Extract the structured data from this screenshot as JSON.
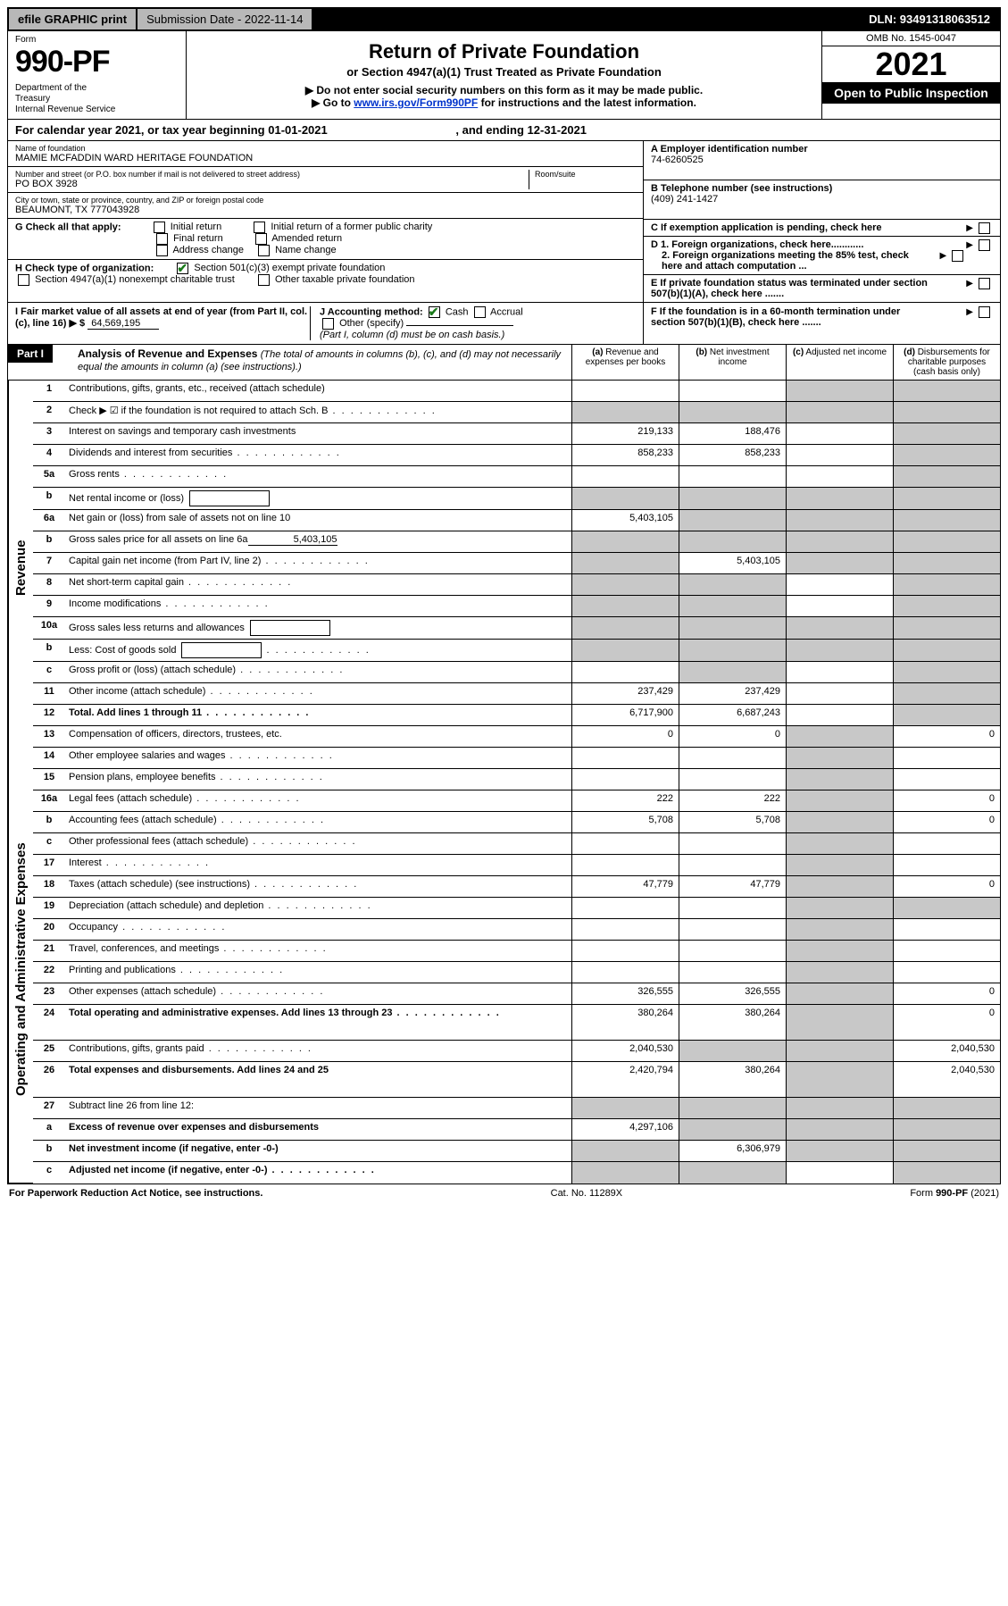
{
  "topbar": {
    "efile": "efile GRAPHIC print",
    "submission_label": "Submission Date - 2022-11-14",
    "dln": "DLN: 93491318063512"
  },
  "header": {
    "form_label": "Form",
    "form_num": "990-PF",
    "dept": "Department of the Treasury\nInternal Revenue Service",
    "title": "Return of Private Foundation",
    "subtitle": "or Section 4947(a)(1) Trust Treated as Private Foundation",
    "note1": "▶ Do not enter social security numbers on this form as it may be made public.",
    "note2_pre": "▶ Go to ",
    "note2_link": "www.irs.gov/Form990PF",
    "note2_post": " for instructions and the latest information.",
    "omb": "OMB No. 1545-0047",
    "year": "2021",
    "open": "Open to Public Inspection"
  },
  "cal_year": {
    "text_pre": "For calendar year 2021, or tax year beginning ",
    "begin": "01-01-2021",
    "text_mid": " , and ending ",
    "end": "12-31-2021"
  },
  "entity": {
    "name_label": "Name of foundation",
    "name": "MAMIE MCFADDIN WARD HERITAGE FOUNDATION",
    "addr_label": "Number and street (or P.O. box number if mail is not delivered to street address)",
    "addr": "PO BOX 3928",
    "room_label": "Room/suite",
    "city_label": "City or town, state or province, country, and ZIP or foreign postal code",
    "city": "BEAUMONT, TX  777043928",
    "ein_label": "A Employer identification number",
    "ein": "74-6260525",
    "phone_label": "B Telephone number (see instructions)",
    "phone": "(409) 241-1427",
    "c_label": "C If exemption application is pending, check here",
    "d1": "D 1. Foreign organizations, check here............",
    "d2": "2. Foreign organizations meeting the 85% test, check here and attach computation ...",
    "e_label": "E  If private foundation status was terminated under section 507(b)(1)(A), check here .......",
    "f_label": "F  If the foundation is in a 60-month termination under section 507(b)(1)(B), check here .......",
    "g_label": "G Check all that apply:",
    "g_opts": [
      "Initial return",
      "Initial return of a former public charity",
      "Final return",
      "Amended return",
      "Address change",
      "Name change"
    ],
    "h_label": "H Check type of organization:",
    "h1": "Section 501(c)(3) exempt private foundation",
    "h2": "Section 4947(a)(1) nonexempt charitable trust",
    "h3": "Other taxable private foundation",
    "i_label": "I Fair market value of all assets at end of year (from Part II, col. (c), line 16) ▶ $",
    "i_value": "64,569,195",
    "j_label": "J Accounting method:",
    "j_cash": "Cash",
    "j_accrual": "Accrual",
    "j_other": "Other (specify)",
    "j_note": "(Part I, column (d) must be on cash basis.)"
  },
  "part1": {
    "label": "Part I",
    "title": "Analysis of Revenue and Expenses",
    "title_note": "(The total of amounts in columns (b), (c), and (d) may not necessarily equal the amounts in column (a) (see instructions).)",
    "col_a": "(a) Revenue and expenses per books",
    "col_b": "(b) Net investment income",
    "col_c": "(c) Adjusted net income",
    "col_d": "(d) Disbursements for charitable purposes (cash basis only)"
  },
  "sections": {
    "revenue": "Revenue",
    "expenses": "Operating and Administrative Expenses"
  },
  "rows": [
    {
      "n": "1",
      "d": "Contributions, gifts, grants, etc., received (attach schedule)",
      "a": "",
      "b": "",
      "c": "grey",
      "dd": "grey"
    },
    {
      "n": "2",
      "d": "Check ▶ ☑ if the foundation is not required to attach Sch. B",
      "a": "grey",
      "b": "grey",
      "c": "grey",
      "dd": "grey",
      "dots": true
    },
    {
      "n": "3",
      "d": "Interest on savings and temporary cash investments",
      "a": "219,133",
      "b": "188,476",
      "c": "",
      "dd": "grey"
    },
    {
      "n": "4",
      "d": "Dividends and interest from securities",
      "a": "858,233",
      "b": "858,233",
      "c": "",
      "dd": "grey",
      "dots": true
    },
    {
      "n": "5a",
      "d": "Gross rents",
      "a": "",
      "b": "",
      "c": "",
      "dd": "grey",
      "dots": true
    },
    {
      "n": "b",
      "d": "Net rental income or (loss)",
      "a": "grey",
      "b": "grey",
      "c": "grey",
      "dd": "grey",
      "box": true
    },
    {
      "n": "6a",
      "d": "Net gain or (loss) from sale of assets not on line 10",
      "a": "5,403,105",
      "b": "grey",
      "c": "grey",
      "dd": "grey"
    },
    {
      "n": "b",
      "d": "Gross sales price for all assets on line 6a",
      "a": "grey",
      "b": "grey",
      "c": "grey",
      "dd": "grey",
      "uline": "5,403,105"
    },
    {
      "n": "7",
      "d": "Capital gain net income (from Part IV, line 2)",
      "a": "grey",
      "b": "5,403,105",
      "c": "grey",
      "dd": "grey",
      "dots": true
    },
    {
      "n": "8",
      "d": "Net short-term capital gain",
      "a": "grey",
      "b": "grey",
      "c": "",
      "dd": "grey",
      "dots": true
    },
    {
      "n": "9",
      "d": "Income modifications",
      "a": "grey",
      "b": "grey",
      "c": "",
      "dd": "grey",
      "dots": true
    },
    {
      "n": "10a",
      "d": "Gross sales less returns and allowances",
      "a": "grey",
      "b": "grey",
      "c": "grey",
      "dd": "grey",
      "box": true
    },
    {
      "n": "b",
      "d": "Less: Cost of goods sold",
      "a": "grey",
      "b": "grey",
      "c": "grey",
      "dd": "grey",
      "box": true,
      "dots": true
    },
    {
      "n": "c",
      "d": "Gross profit or (loss) (attach schedule)",
      "a": "",
      "b": "grey",
      "c": "",
      "dd": "grey",
      "dots": true
    },
    {
      "n": "11",
      "d": "Other income (attach schedule)",
      "a": "237,429",
      "b": "237,429",
      "c": "",
      "dd": "grey",
      "dots": true
    },
    {
      "n": "12",
      "d": "Total. Add lines 1 through 11",
      "a": "6,717,900",
      "b": "6,687,243",
      "c": "",
      "dd": "grey",
      "bold": true,
      "dots": true
    },
    {
      "n": "13",
      "d": "Compensation of officers, directors, trustees, etc.",
      "a": "0",
      "b": "0",
      "c": "grey",
      "dd": "0"
    },
    {
      "n": "14",
      "d": "Other employee salaries and wages",
      "a": "",
      "b": "",
      "c": "grey",
      "dd": "",
      "dots": true
    },
    {
      "n": "15",
      "d": "Pension plans, employee benefits",
      "a": "",
      "b": "",
      "c": "grey",
      "dd": "",
      "dots": true
    },
    {
      "n": "16a",
      "d": "Legal fees (attach schedule)",
      "a": "222",
      "b": "222",
      "c": "grey",
      "dd": "0",
      "dots": true
    },
    {
      "n": "b",
      "d": "Accounting fees (attach schedule)",
      "a": "5,708",
      "b": "5,708",
      "c": "grey",
      "dd": "0",
      "dots": true
    },
    {
      "n": "c",
      "d": "Other professional fees (attach schedule)",
      "a": "",
      "b": "",
      "c": "grey",
      "dd": "",
      "dots": true
    },
    {
      "n": "17",
      "d": "Interest",
      "a": "",
      "b": "",
      "c": "grey",
      "dd": "",
      "dots": true
    },
    {
      "n": "18",
      "d": "Taxes (attach schedule) (see instructions)",
      "a": "47,779",
      "b": "47,779",
      "c": "grey",
      "dd": "0",
      "dots": true
    },
    {
      "n": "19",
      "d": "Depreciation (attach schedule) and depletion",
      "a": "",
      "b": "",
      "c": "grey",
      "dd": "grey",
      "dots": true
    },
    {
      "n": "20",
      "d": "Occupancy",
      "a": "",
      "b": "",
      "c": "grey",
      "dd": "",
      "dots": true
    },
    {
      "n": "21",
      "d": "Travel, conferences, and meetings",
      "a": "",
      "b": "",
      "c": "grey",
      "dd": "",
      "dots": true
    },
    {
      "n": "22",
      "d": "Printing and publications",
      "a": "",
      "b": "",
      "c": "grey",
      "dd": "",
      "dots": true
    },
    {
      "n": "23",
      "d": "Other expenses (attach schedule)",
      "a": "326,555",
      "b": "326,555",
      "c": "grey",
      "dd": "0",
      "dots": true
    },
    {
      "n": "24",
      "d": "Total operating and administrative expenses. Add lines 13 through 23",
      "a": "380,264",
      "b": "380,264",
      "c": "grey",
      "dd": "0",
      "bold": true,
      "dots": true,
      "tall": true
    },
    {
      "n": "25",
      "d": "Contributions, gifts, grants paid",
      "a": "2,040,530",
      "b": "grey",
      "c": "grey",
      "dd": "2,040,530",
      "dots": true
    },
    {
      "n": "26",
      "d": "Total expenses and disbursements. Add lines 24 and 25",
      "a": "2,420,794",
      "b": "380,264",
      "c": "grey",
      "dd": "2,040,530",
      "bold": true,
      "tall": true
    },
    {
      "n": "27",
      "d": "Subtract line 26 from line 12:",
      "a": "grey",
      "b": "grey",
      "c": "grey",
      "dd": "grey"
    },
    {
      "n": "a",
      "d": "Excess of revenue over expenses and disbursements",
      "a": "4,297,106",
      "b": "grey",
      "c": "grey",
      "dd": "grey",
      "bold": true
    },
    {
      "n": "b",
      "d": "Net investment income (if negative, enter -0-)",
      "a": "grey",
      "b": "6,306,979",
      "c": "grey",
      "dd": "grey",
      "bold": true
    },
    {
      "n": "c",
      "d": "Adjusted net income (if negative, enter -0-)",
      "a": "grey",
      "b": "grey",
      "c": "",
      "dd": "grey",
      "bold": true,
      "dots": true
    }
  ],
  "footer": {
    "left": "For Paperwork Reduction Act Notice, see instructions.",
    "mid": "Cat. No. 11289X",
    "right": "Form 990-PF (2021)"
  }
}
